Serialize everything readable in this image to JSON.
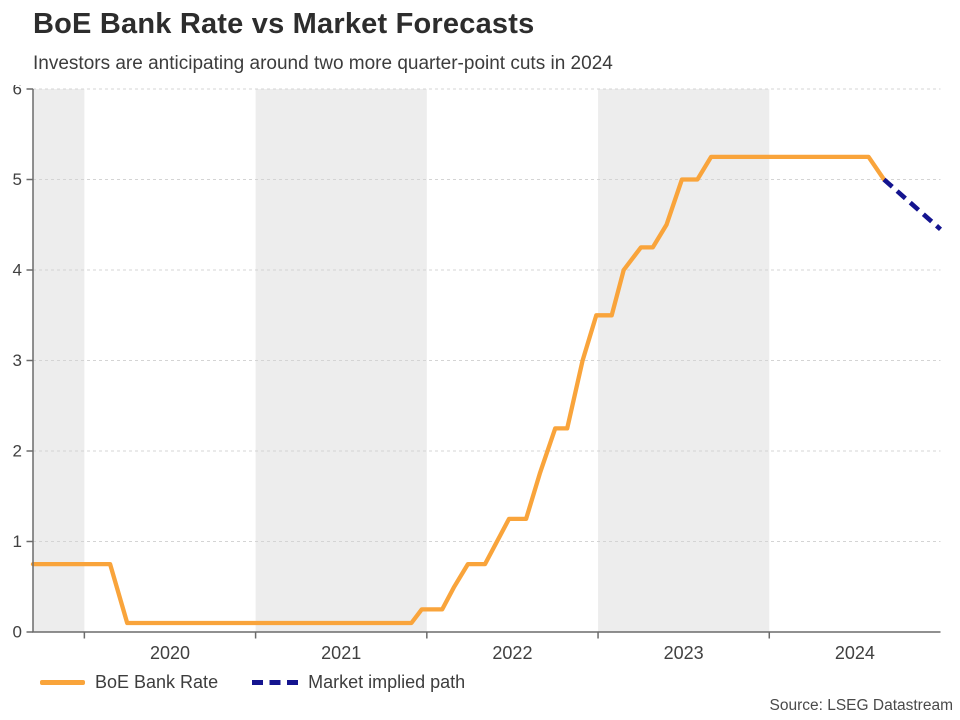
{
  "chart_data": {
    "type": "line",
    "title": "BoE Bank Rate vs Market Forecasts",
    "subtitle": "Investors are anticipating around two more quarter-point cuts in 2024",
    "source_note": "Source: LSEG Datastream",
    "xlim": [
      2019.7,
      2025.0
    ],
    "ylim": [
      0,
      6
    ],
    "y_ticks": [
      0,
      1,
      2,
      3,
      4,
      5,
      6
    ],
    "x_ticks": [
      2020,
      2021,
      2022,
      2023,
      2024
    ],
    "x_tick_labels": [
      "2020",
      "2021",
      "2022",
      "2023",
      "2024"
    ],
    "x_tick_label_positions": [
      2020.5,
      2021.5,
      2022.5,
      2023.5,
      2024.5
    ],
    "grid": "horizontal-dotted",
    "legend_position": "bottom-left",
    "shaded_year_bands": [
      [
        2019.7,
        2020.0
      ],
      [
        2021.0,
        2022.0
      ],
      [
        2023.0,
        2024.0
      ]
    ],
    "band_color": "#EDEDED",
    "grid_color": "#D4D4D4",
    "axis_color": "#6b6b6b",
    "series": [
      {
        "name": "BoE Bank Rate",
        "color": "#F9A43B",
        "style": "solid",
        "points": [
          [
            2019.7,
            0.75
          ],
          [
            2020.15,
            0.75
          ],
          [
            2020.25,
            0.1
          ],
          [
            2021.91,
            0.1
          ],
          [
            2021.97,
            0.25
          ],
          [
            2022.09,
            0.25
          ],
          [
            2022.16,
            0.5
          ],
          [
            2022.24,
            0.75
          ],
          [
            2022.34,
            0.75
          ],
          [
            2022.41,
            1.0
          ],
          [
            2022.48,
            1.25
          ],
          [
            2022.58,
            1.25
          ],
          [
            2022.66,
            1.75
          ],
          [
            2022.75,
            2.25
          ],
          [
            2022.82,
            2.25
          ],
          [
            2022.91,
            3.0
          ],
          [
            2022.99,
            3.5
          ],
          [
            2023.08,
            3.5
          ],
          [
            2023.15,
            4.0
          ],
          [
            2023.25,
            4.25
          ],
          [
            2023.32,
            4.25
          ],
          [
            2023.4,
            4.5
          ],
          [
            2023.49,
            5.0
          ],
          [
            2023.58,
            5.0
          ],
          [
            2023.66,
            5.25
          ],
          [
            2024.58,
            5.25
          ],
          [
            2024.67,
            5.0
          ]
        ]
      },
      {
        "name": "Market implied path",
        "color": "#14148F",
        "style": "dashed",
        "points": [
          [
            2024.67,
            5.0
          ],
          [
            2025.0,
            4.45
          ]
        ]
      }
    ]
  }
}
